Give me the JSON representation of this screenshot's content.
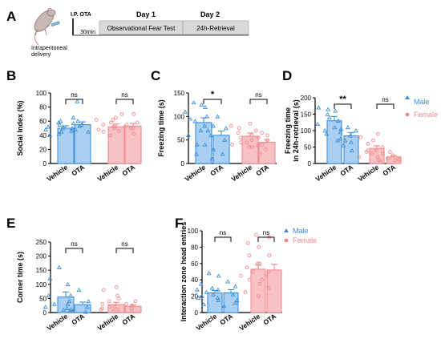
{
  "colors": {
    "male": "#3d8fd9",
    "female": "#f0888c",
    "male_fill": "#a9d0f2",
    "female_fill": "#f8c2c4",
    "axis": "#000000",
    "timeline_bg": "#d9d9d9"
  },
  "panel_a": {
    "letter": "A",
    "ip_label": "I.P. OTA",
    "delay_label": "30min",
    "delivery_label_line1": "Intraperitoneal",
    "delivery_label_line2": "delivery",
    "day1": "Day 1",
    "day2": "Day 2",
    "test1": "Observational Fear Test",
    "test2": "24h-Retrieval",
    "mouse_icon": "mouse-syringe-icon"
  },
  "legend": {
    "male": "Male",
    "female": "Female"
  },
  "chart_data": [
    {
      "panel": "B",
      "type": "bar",
      "ylabel": "Social Index (%)",
      "ylim": [
        0,
        100
      ],
      "yticks": [
        0,
        20,
        40,
        60,
        80,
        100
      ],
      "ytick_labels": [
        "0",
        "20",
        "40",
        "60",
        "80",
        "100"
      ],
      "categories": [
        "Vehicle",
        "OTA",
        "Vehicle",
        "OTA"
      ],
      "groups": [
        "Male",
        "Male",
        "Female",
        "Female"
      ],
      "values": [
        50,
        55,
        52,
        53
      ],
      "errors": [
        3.5,
        4,
        4,
        4
      ],
      "points": [
        [
          42,
          45,
          48,
          50,
          52,
          55,
          58,
          60,
          40,
          46
        ],
        [
          45,
          50,
          52,
          55,
          57,
          60,
          65,
          88,
          48,
          53
        ],
        [
          40,
          45,
          50,
          52,
          55,
          58,
          62,
          70,
          48,
          54
        ],
        [
          42,
          46,
          50,
          52,
          55,
          58,
          62,
          70,
          65,
          50
        ]
      ],
      "sig": [
        {
          "i": 0,
          "j": 1,
          "label": "ns"
        },
        {
          "i": 2,
          "j": 3,
          "label": "ns"
        }
      ]
    },
    {
      "panel": "C",
      "type": "bar",
      "ylabel": "Freezing time (s)",
      "ylim": [
        0,
        150
      ],
      "yticks": [
        0,
        50,
        100,
        150
      ],
      "ytick_labels": [
        "0",
        "50",
        "100",
        "150"
      ],
      "categories": [
        "Vehicle",
        "OTA",
        "Vehicle",
        "OTA"
      ],
      "groups": [
        "Male",
        "Male",
        "Female",
        "Female"
      ],
      "values": [
        87,
        60,
        58,
        45
      ],
      "errors": [
        10,
        9,
        7,
        5
      ],
      "points": [
        [
          20,
          40,
          60,
          70,
          80,
          90,
          100,
          110,
          120,
          130,
          125,
          95
        ],
        [
          10,
          20,
          30,
          50,
          60,
          70,
          75,
          80,
          100,
          40
        ],
        [
          40,
          50,
          55,
          60,
          65,
          70,
          75,
          80,
          85,
          45,
          35
        ],
        [
          20,
          30,
          35,
          40,
          45,
          50,
          55,
          60,
          65,
          38
        ]
      ],
      "sig": [
        {
          "i": 0,
          "j": 1,
          "label": "*"
        },
        {
          "i": 2,
          "j": 3,
          "label": "ns"
        }
      ]
    },
    {
      "panel": "D",
      "type": "bar",
      "ylabel": "Freezing time in 24h-retrieval (s)",
      "ylim": [
        0,
        200
      ],
      "yticks": [
        0,
        50,
        100,
        150,
        200
      ],
      "ytick_labels": [
        "0",
        "50",
        "100",
        "150",
        "200"
      ],
      "categories": [
        "Vehicle",
        "OTA",
        "Vehicle",
        "OTA"
      ],
      "groups": [
        "Male",
        "Male",
        "Female",
        "Female"
      ],
      "values": [
        130,
        84,
        46,
        20
      ],
      "errors": [
        13,
        10,
        8,
        4
      ],
      "points": [
        [
          70,
          90,
          110,
          120,
          130,
          150,
          160,
          170,
          165,
          140,
          100
        ],
        [
          40,
          55,
          65,
          75,
          85,
          95,
          100,
          105,
          110,
          70
        ],
        [
          10,
          20,
          30,
          40,
          50,
          60,
          70,
          80,
          90,
          35
        ],
        [
          5,
          10,
          15,
          20,
          25,
          30,
          35,
          40,
          12
        ]
      ],
      "sig": [
        {
          "i": 0,
          "j": 1,
          "label": "**"
        },
        {
          "i": 2,
          "j": 3,
          "label": "ns"
        }
      ]
    },
    {
      "panel": "E",
      "type": "bar",
      "ylabel": "Corner time (s)",
      "ylim": [
        0,
        250
      ],
      "yticks": [
        0,
        50,
        100,
        150,
        200,
        250
      ],
      "ytick_labels": [
        "0",
        "50",
        "100",
        "150",
        "200",
        "250"
      ],
      "categories": [
        "Vehicle",
        "OTA",
        "Vehicle",
        "OTA"
      ],
      "groups": [
        "Male",
        "Male",
        "Female",
        "Female"
      ],
      "values": [
        55,
        28,
        28,
        22
      ],
      "errors": [
        18,
        9,
        8,
        5
      ],
      "points": [
        [
          5,
          10,
          20,
          40,
          60,
          100,
          120,
          160,
          30
        ],
        [
          2,
          5,
          10,
          20,
          30,
          40,
          60,
          80,
          15
        ],
        [
          5,
          10,
          20,
          30,
          40,
          60,
          80,
          90,
          15
        ],
        [
          5,
          10,
          15,
          20,
          30,
          40,
          50,
          25
        ]
      ],
      "sig": [
        {
          "i": 0,
          "j": 1,
          "label": "ns"
        },
        {
          "i": 2,
          "j": 3,
          "label": "ns"
        }
      ]
    },
    {
      "panel": "F",
      "type": "bar",
      "ylabel": "Interaction zone head entries",
      "ylim": [
        0,
        100
      ],
      "yticks": [
        0,
        20,
        40,
        60,
        80,
        100
      ],
      "ytick_labels": [
        "0",
        "20",
        "40",
        "60",
        "80",
        "100"
      ],
      "categories": [
        "Vehicle",
        "OTA",
        "Vehicle",
        "OTA"
      ],
      "groups": [
        "Male",
        "Male",
        "Female",
        "Female"
      ],
      "values": [
        24,
        24,
        53,
        52
      ],
      "errors": [
        3,
        4,
        5,
        7
      ],
      "points": [
        [
          10,
          15,
          20,
          22,
          25,
          28,
          30,
          35,
          48,
          18
        ],
        [
          8,
          12,
          18,
          22,
          28,
          32,
          38,
          45,
          15
        ],
        [
          25,
          35,
          45,
          50,
          55,
          60,
          70,
          85,
          95,
          40
        ],
        [
          20,
          30,
          40,
          50,
          60,
          70,
          80,
          92,
          45
        ]
      ],
      "sig": [
        {
          "i": 0,
          "j": 1,
          "label": "ns"
        },
        {
          "i": 2,
          "j": 3,
          "label": "ns"
        }
      ]
    }
  ]
}
